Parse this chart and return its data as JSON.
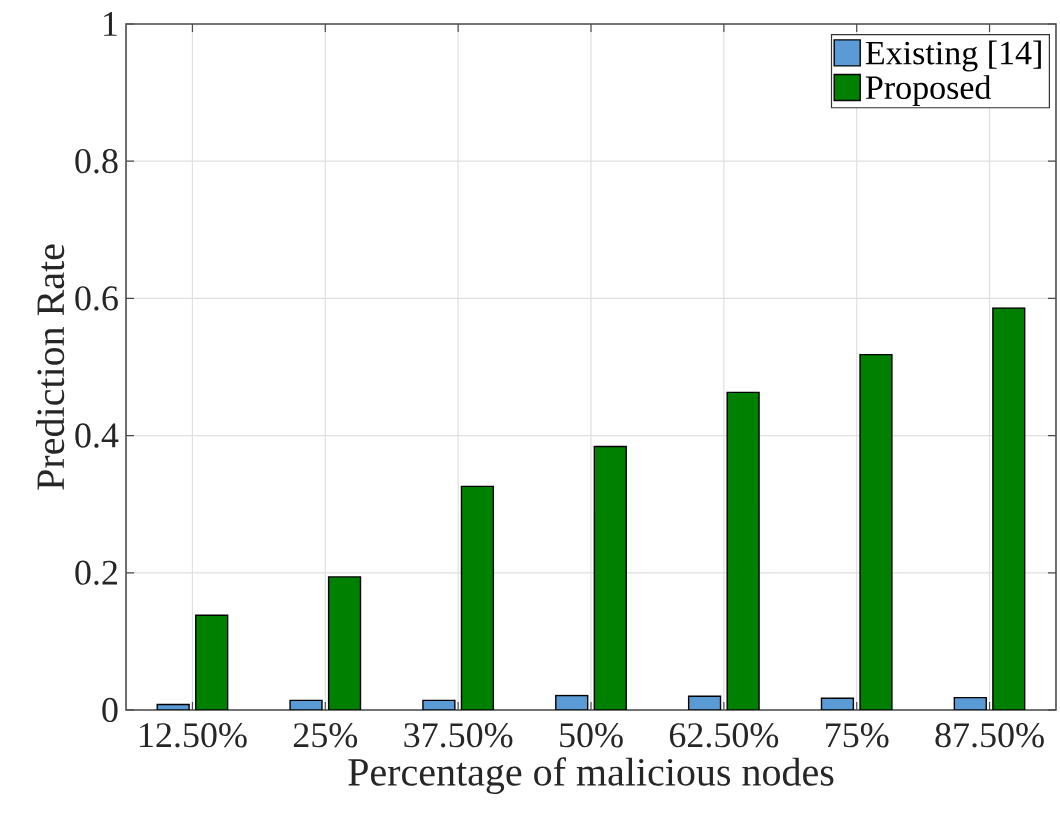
{
  "chart_data": {
    "type": "bar",
    "xlabel": "Percentage of malicious nodes",
    "ylabel": "Prediction Rate",
    "categories": [
      "12.50%",
      "25%",
      "37.50%",
      "50%",
      "62.50%",
      "75%",
      "87.50%"
    ],
    "series": [
      {
        "name": "Existing [14]",
        "color": "#5b9bd5",
        "values": [
          0.008,
          0.014,
          0.014,
          0.021,
          0.02,
          0.017,
          0.018
        ]
      },
      {
        "name": "Proposed",
        "color": "#008000",
        "values": [
          0.138,
          0.194,
          0.326,
          0.384,
          0.463,
          0.518,
          0.586
        ]
      }
    ],
    "ylim": [
      0,
      1
    ],
    "yticks": [
      0,
      0.2,
      0.4,
      0.6,
      0.8,
      1
    ],
    "grid": true,
    "legend": "top right"
  }
}
